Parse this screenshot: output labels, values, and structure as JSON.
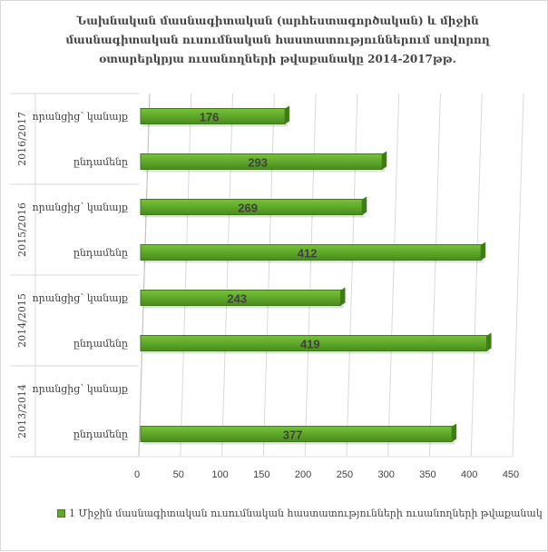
{
  "chart_data": {
    "type": "bar",
    "orientation": "horizontal",
    "title": "Նախնական մասնագիտական (արհեստագործական) և միջին մասնագիտական ուսումնական հաստատություններում սովորող օտարերկրյա ուսանողների թվաքանակը 2014-2017թթ.",
    "groups": [
      {
        "label": "2016/2017",
        "categories": [
          "որանցից՝ կանայք",
          "ընդամենը"
        ],
        "values": [
          176,
          293
        ]
      },
      {
        "label": "2015/2016",
        "categories": [
          "որանցից՝ կանայք",
          "ընդամենը"
        ],
        "values": [
          269,
          412
        ]
      },
      {
        "label": "2014/2015",
        "categories": [
          "որանցից՝ կանայք",
          "ընդամենը"
        ],
        "values": [
          243,
          419
        ]
      },
      {
        "label": "2013/2014",
        "categories": [
          "որանցից՝ կանայք",
          "ընդամենը"
        ],
        "values": [
          null,
          377
        ]
      }
    ],
    "xlim": [
      0,
      450
    ],
    "xticks": [
      0,
      50,
      100,
      150,
      200,
      250,
      300,
      350,
      400,
      450
    ],
    "grid": true,
    "legend": {
      "position": "bottom",
      "entries": [
        "1 Միջին մասնագիտական ուսումնական հաստատությունների ուսանողների թվաքանակ"
      ]
    },
    "colors": {
      "bar": "#5fa82a",
      "bar_dark": "#3e7c17",
      "grid": "#d9d9d9",
      "text": "#404040"
    }
  }
}
